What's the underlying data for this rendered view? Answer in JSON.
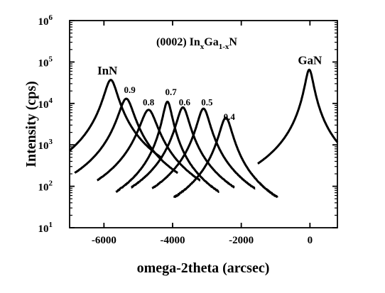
{
  "chart_data": {
    "type": "line",
    "title": "(0002) In",
    "title_sub1": "x",
    "title_mid": "Ga",
    "title_sub2": "1-x",
    "title_end": "N",
    "xlabel": "omega-2theta (arcsec)",
    "ylabel": "Intensity (cps)",
    "xlim": [
      -7000,
      800
    ],
    "ylim_log10": [
      1,
      6
    ],
    "yscale": "log",
    "x_ticks": [
      -6000,
      -4000,
      -2000,
      0
    ],
    "x_tick_labels": [
      "-6000",
      "-4000",
      "-2000",
      "0"
    ],
    "y_ticks": [
      1,
      2,
      3,
      4,
      5,
      6
    ],
    "y_tick_base": "10",
    "y_tick_exponents": [
      "1",
      "2",
      "3",
      "4",
      "5",
      "6"
    ],
    "grid": false,
    "series": [
      {
        "name": "InN",
        "center": -5800,
        "peak": 37000,
        "width": 170
      },
      {
        "name": "0.9",
        "center": -5350,
        "peak": 13000,
        "width": 190
      },
      {
        "name": "0.8",
        "center": -4700,
        "peak": 7000,
        "width": 210
      },
      {
        "name": "0.7",
        "center": -4150,
        "peak": 11000,
        "width": 120
      },
      {
        "name": "0.6",
        "center": -3700,
        "peak": 8000,
        "width": 160
      },
      {
        "name": "0.5",
        "center": -3100,
        "peak": 7500,
        "width": 160
      },
      {
        "name": "0.4",
        "center": -2450,
        "peak": 4500,
        "width": 160
      },
      {
        "name": "GaN",
        "center": -20,
        "peak": 65000,
        "width": 110
      }
    ],
    "annotations": [
      {
        "text": "InN",
        "x": -5900,
        "y_log10": 4.7
      },
      {
        "text": "0.9",
        "x": -5250,
        "y_log10": 4.25
      },
      {
        "text": "0.8",
        "x": -4700,
        "y_log10": 3.95
      },
      {
        "text": "0.7",
        "x": -4050,
        "y_log10": 4.2
      },
      {
        "text": "0.6",
        "x": -3650,
        "y_log10": 3.95
      },
      {
        "text": "0.5",
        "x": -3000,
        "y_log10": 3.95
      },
      {
        "text": "0.4",
        "x": -2350,
        "y_log10": 3.6
      },
      {
        "text": "GaN",
        "x": 0,
        "y_log10": 4.95
      }
    ]
  }
}
